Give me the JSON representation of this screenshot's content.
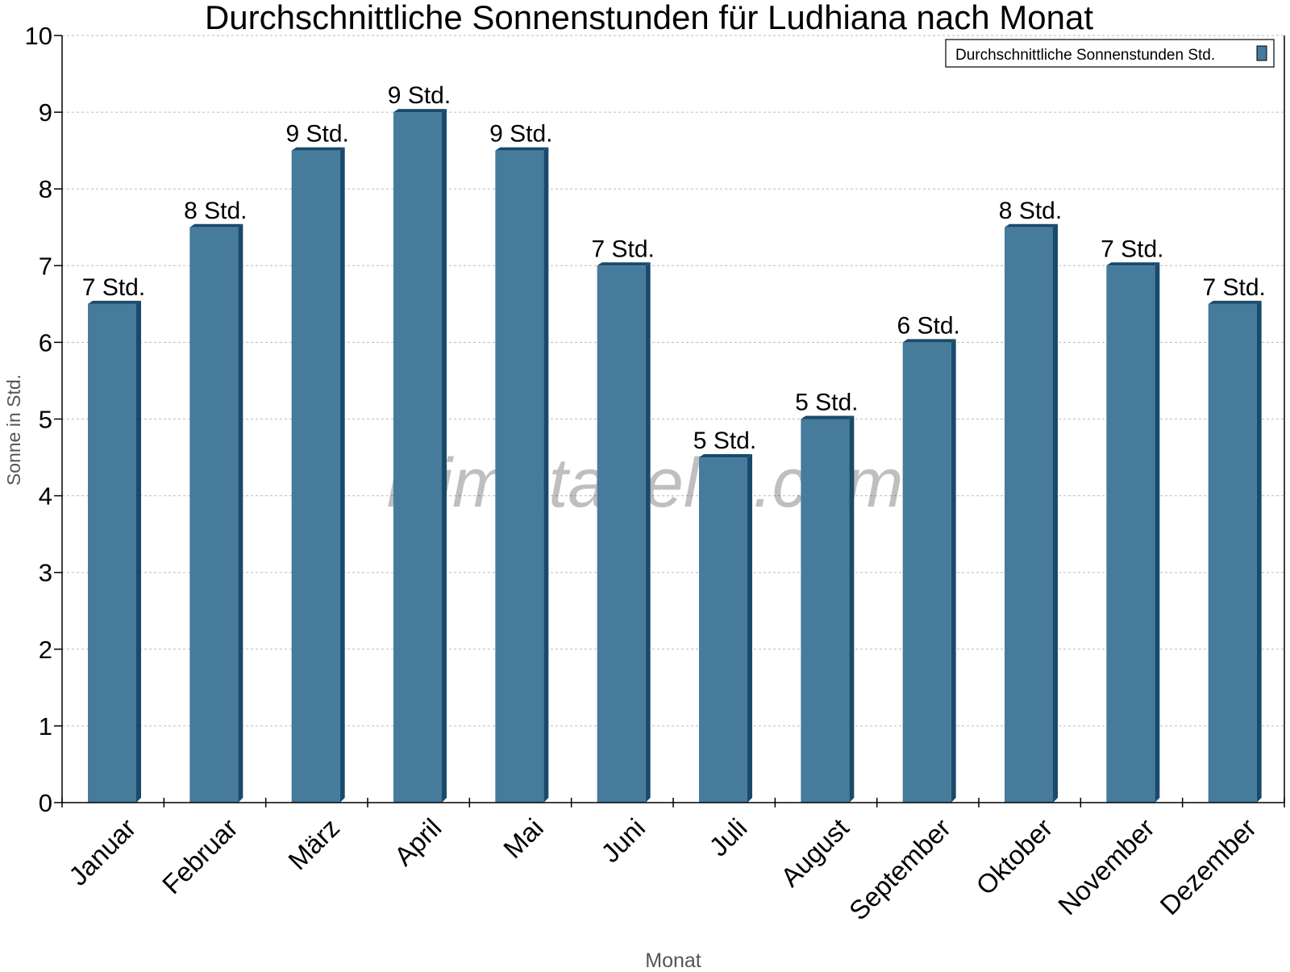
{
  "chart_data": {
    "type": "bar",
    "title": "Durchschnittliche Sonnenstunden für Ludhiana nach Monat",
    "xlabel": "Monat",
    "ylabel": "Sonne in Std.",
    "ylim": [
      0,
      10
    ],
    "yticks": [
      0,
      1,
      2,
      3,
      4,
      5,
      6,
      7,
      8,
      9,
      10
    ],
    "grid": true,
    "legend_position": "top-right",
    "watermark": "klimatabelle.com",
    "categories": [
      "Januar",
      "Februar",
      "März",
      "April",
      "Mai",
      "Juni",
      "Juli",
      "August",
      "September",
      "Oktober",
      "November",
      "Dezember"
    ],
    "series": [
      {
        "name": "Durchschnittliche Sonnenstunden Std.",
        "color": "#467b9c",
        "side_color": "#1a4a6b",
        "values": [
          6.5,
          7.5,
          8.5,
          9,
          8.5,
          7,
          4.5,
          5,
          6,
          7.5,
          7,
          6.5
        ],
        "labels": [
          "7 Std.",
          "8 Std.",
          "9 Std.",
          "9 Std.",
          "9 Std.",
          "7 Std.",
          "5 Std.",
          "5 Std.",
          "6 Std.",
          "8 Std.",
          "7 Std.",
          "7 Std."
        ]
      }
    ]
  }
}
